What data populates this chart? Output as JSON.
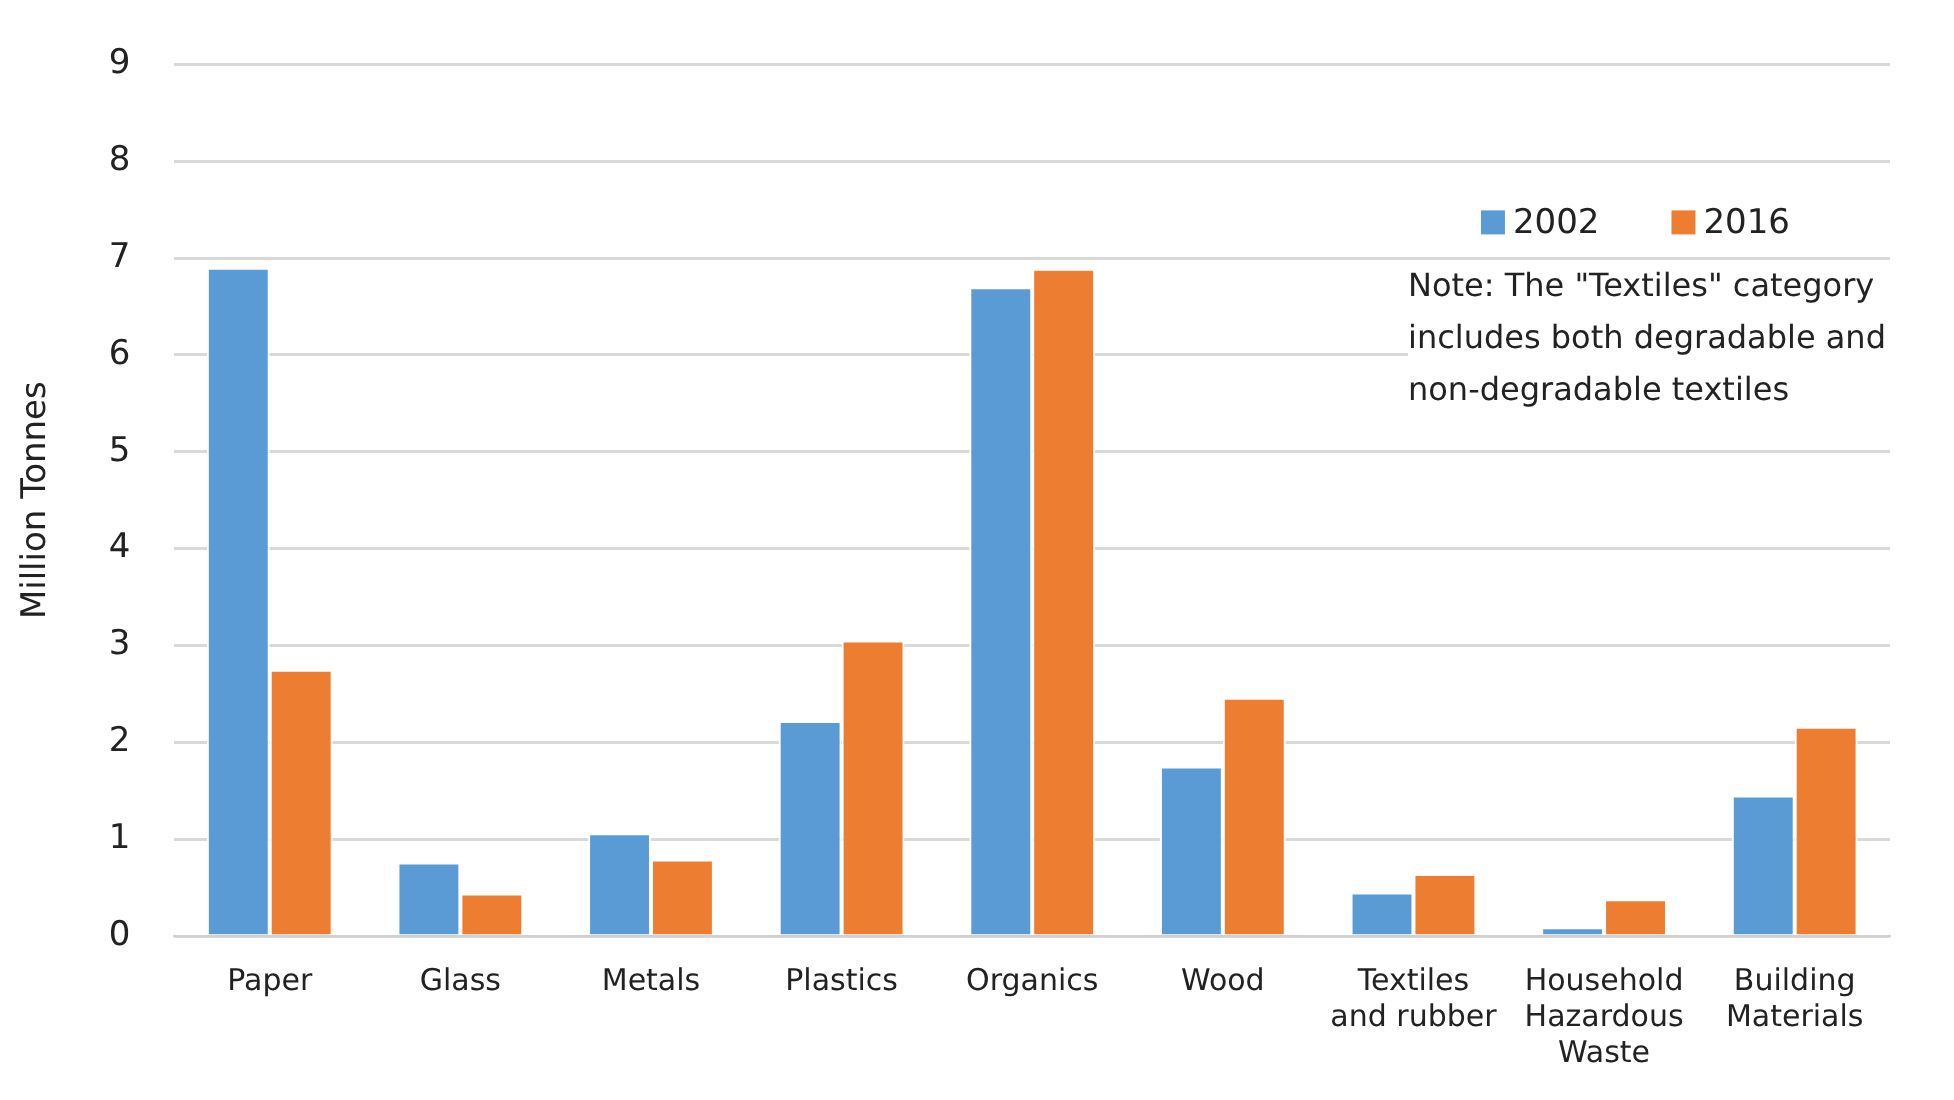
{
  "chart_data": {
    "type": "bar",
    "ylabel": "Million Tonnes",
    "categories": [
      "Paper",
      "Glass",
      "Metals",
      "Plastics",
      "Organics",
      "Wood",
      "Textiles and rubber",
      "Household Hazardous Waste",
      "Building Materials"
    ],
    "series": [
      {
        "name": "2002",
        "color": "#5b9bd5",
        "values": [
          6.9,
          0.76,
          1.06,
          2.22,
          6.7,
          1.75,
          0.45,
          0.09,
          1.45
        ]
      },
      {
        "name": "2016",
        "color": "#ed7d31",
        "values": [
          2.75,
          0.44,
          0.79,
          3.05,
          6.89,
          2.46,
          0.64,
          0.38,
          2.16
        ]
      }
    ],
    "ylim": [
      0,
      9
    ],
    "yticks": [
      0,
      1,
      2,
      3,
      4,
      5,
      6,
      7,
      8,
      9
    ],
    "grid": "y",
    "legend": "top right",
    "annotations": [
      "Note: The \"Textiles\" category includes both degradable and non-degradable textiles"
    ]
  }
}
